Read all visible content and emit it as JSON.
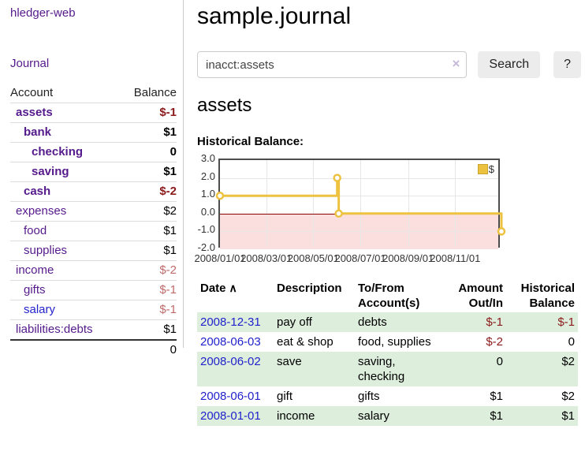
{
  "palette": {
    "link_purple": "#551a8b",
    "link_blue": "#2222cc",
    "negative_strong": "#8b1a1a",
    "negative_soft": "#c06a6a",
    "row_stripe_green": "#ddeedd",
    "chart_gold": "#edc240",
    "chart_negative_region": "#fbdfdf",
    "chart_zero_line": "#8b0000"
  },
  "brand": {
    "label": "hledger-web"
  },
  "nav": {
    "journal": "Journal"
  },
  "sidebar": {
    "header": {
      "account": "Account",
      "balance": "Balance"
    },
    "accounts": [
      {
        "name": "assets",
        "balance": "$-1",
        "level": 1,
        "bold": true,
        "balance_tone": "negative-strong"
      },
      {
        "name": "bank",
        "balance": "$1",
        "level": 2,
        "bold": true,
        "balance_tone": "normal"
      },
      {
        "name": "checking",
        "balance": "0",
        "level": 3,
        "bold": true,
        "balance_tone": "normal"
      },
      {
        "name": "saving",
        "balance": "$1",
        "level": 3,
        "bold": true,
        "balance_tone": "normal"
      },
      {
        "name": "cash",
        "balance": "$-2",
        "level": 2,
        "bold": true,
        "balance_tone": "negative-strong"
      },
      {
        "name": "expenses",
        "balance": "$2",
        "level": 1,
        "bold": false,
        "balance_tone": "normal"
      },
      {
        "name": "food",
        "balance": "$1",
        "level": 2,
        "bold": false,
        "balance_tone": "normal"
      },
      {
        "name": "supplies",
        "balance": "$1",
        "level": 2,
        "bold": false,
        "balance_tone": "normal"
      },
      {
        "name": "income",
        "balance": "$-2",
        "level": 1,
        "bold": false,
        "balance_tone": "negative-soft"
      },
      {
        "name": "gifts",
        "balance": "$-1",
        "level": 2,
        "bold": false,
        "balance_tone": "negative-soft"
      },
      {
        "name": "salary",
        "balance": "$-1",
        "level": 2,
        "bold": false,
        "balance_tone": "negative-soft",
        "link_tone": "unvisited"
      },
      {
        "name": "liabilities:debts",
        "balance": "$1",
        "level": 1,
        "bold": false,
        "balance_tone": "normal"
      }
    ],
    "total": "0"
  },
  "main": {
    "title": "sample.journal",
    "search": {
      "value": "inacct:assets",
      "clear_icon": "×",
      "button": "Search",
      "help": "?"
    },
    "section_title": "assets",
    "chart_title": "Historical Balance:"
  },
  "chart_data": {
    "type": "line",
    "step": true,
    "title": "Historical Balance",
    "x_range": [
      "2008-01-01",
      "2008-12-31"
    ],
    "y_range": [
      -2,
      3
    ],
    "y_ticks": [
      "3.0",
      "2.0",
      "1.0",
      "0.0",
      "-1.0",
      "-2.0"
    ],
    "x_ticks": [
      {
        "date": "2008-01-01",
        "label": "2008/01/01"
      },
      {
        "date": "2008-03-01",
        "label": "2008/03/01"
      },
      {
        "date": "2008-05-01",
        "label": "2008/05/01"
      },
      {
        "date": "2008-07-01",
        "label": "2008/07/01"
      },
      {
        "date": "2008-09-01",
        "label": "2008/09/01"
      },
      {
        "date": "2008-11-01",
        "label": "2008/11/01"
      }
    ],
    "series": [
      {
        "name": "$",
        "color": "#edc240",
        "points": [
          {
            "date": "2008-01-01",
            "value": 1
          },
          {
            "date": "2008-06-01",
            "value": 2
          },
          {
            "date": "2008-06-03",
            "value": 0
          },
          {
            "date": "2008-12-31",
            "value": -1
          }
        ]
      }
    ],
    "legend": {
      "label": "$",
      "position": "top-right"
    },
    "zero_line": true,
    "negative_region": true,
    "grid": true
  },
  "register": {
    "headers": [
      {
        "lines": [
          "Date"
        ],
        "align": "left",
        "sort": "asc"
      },
      {
        "lines": [
          "Description"
        ],
        "align": "left"
      },
      {
        "lines": [
          "To/From",
          "Account(s)"
        ],
        "align": "left"
      },
      {
        "lines": [
          "Amount",
          "Out/In"
        ],
        "align": "right"
      },
      {
        "lines": [
          "Historical",
          "Balance"
        ],
        "align": "right"
      }
    ],
    "sort_icon": "∧",
    "rows": [
      {
        "date": "2008-12-31",
        "description": "pay off",
        "accounts": "debts",
        "amount": "$-1",
        "amount_tone": "negative",
        "balance": "$-1",
        "balance_tone": "negative",
        "striped": true
      },
      {
        "date": "2008-06-03",
        "description": "eat & shop",
        "accounts": "food, supplies",
        "amount": "$-2",
        "amount_tone": "negative",
        "balance": "0",
        "balance_tone": "normal",
        "striped": false
      },
      {
        "date": "2008-06-02",
        "description": "save",
        "accounts": "saving, checking",
        "amount": "0",
        "amount_tone": "normal",
        "balance": "$2",
        "balance_tone": "normal",
        "striped": true
      },
      {
        "date": "2008-06-01",
        "description": "gift",
        "accounts": "gifts",
        "amount": "$1",
        "amount_tone": "normal",
        "balance": "$2",
        "balance_tone": "normal",
        "striped": false
      },
      {
        "date": "2008-01-01",
        "description": "income",
        "accounts": "salary",
        "amount": "$1",
        "amount_tone": "normal",
        "balance": "$1",
        "balance_tone": "normal",
        "striped": true
      }
    ]
  }
}
